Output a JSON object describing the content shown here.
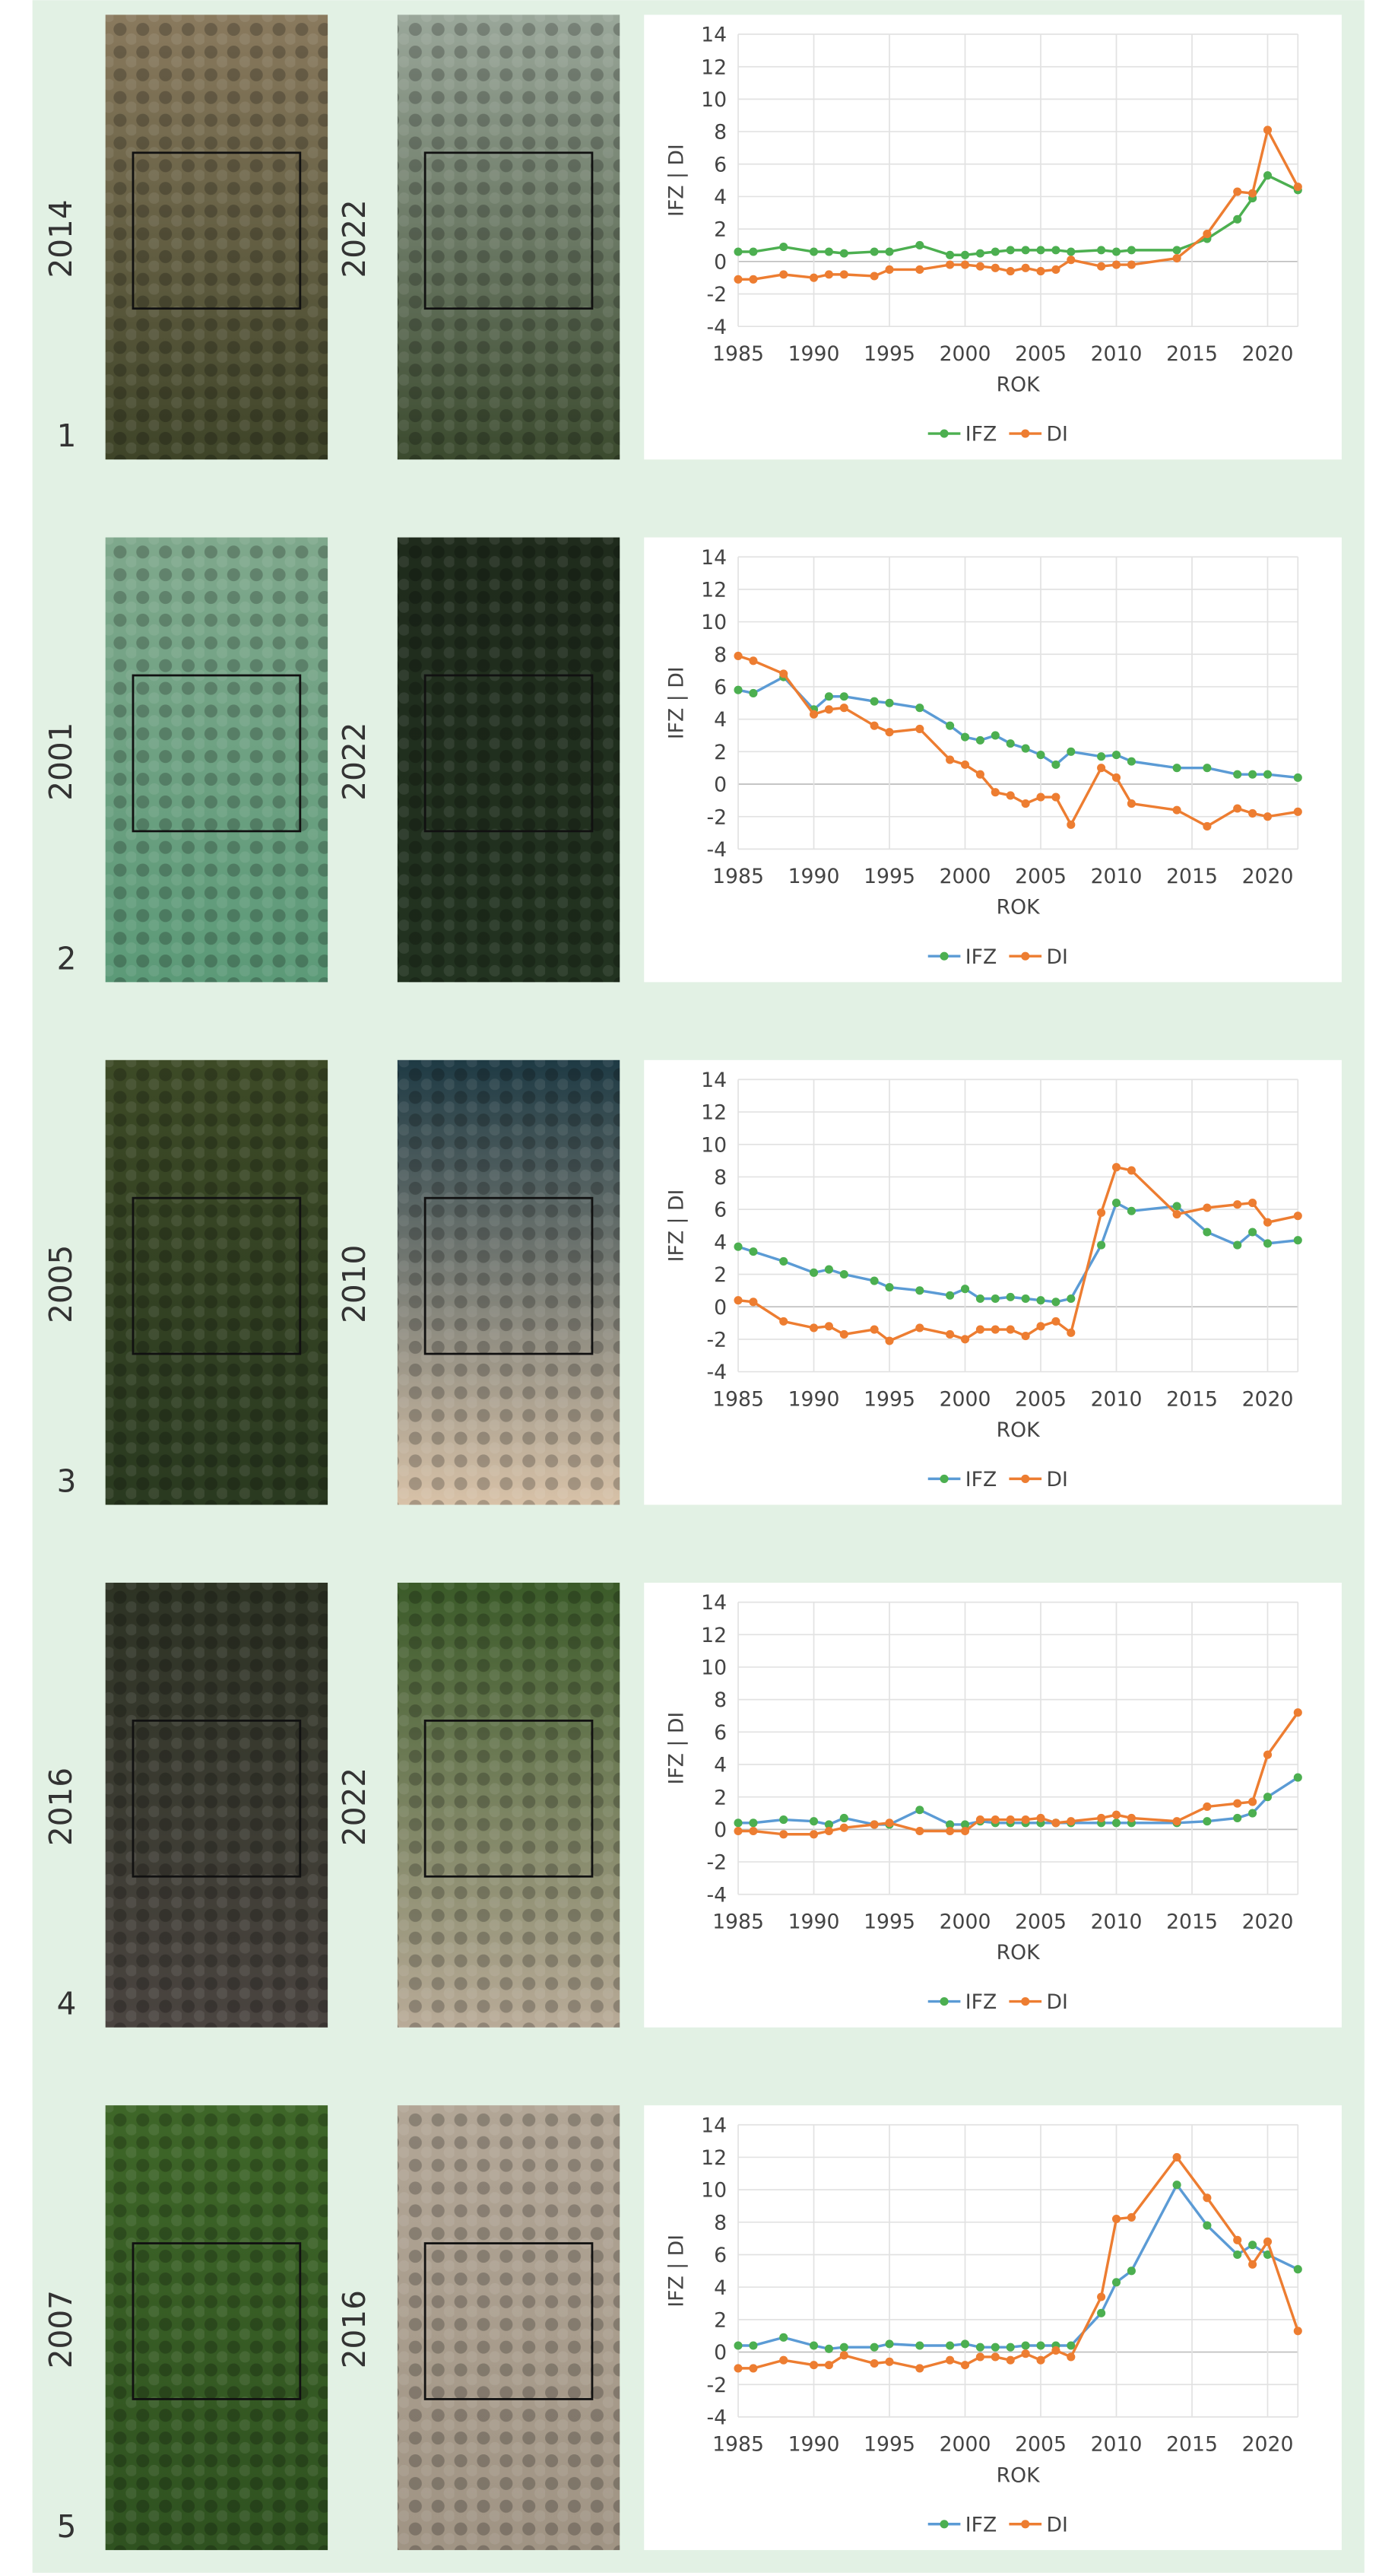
{
  "rows": [
    {
      "number": "1",
      "years": [
        "2014",
        "2022"
      ]
    },
    {
      "number": "2",
      "years": [
        "2001",
        "2022"
      ]
    },
    {
      "number": "3",
      "years": [
        "2005",
        "2010"
      ]
    },
    {
      "number": "4",
      "years": [
        "2016",
        "2022"
      ]
    },
    {
      "number": "5",
      "years": [
        "2007",
        "2016"
      ]
    }
  ],
  "chart_data": [
    {
      "type": "line",
      "ylabel": "IFZ | DI",
      "xlabel": "ROK",
      "xlim": [
        1985,
        2022
      ],
      "xticks": [
        1985,
        1990,
        1995,
        2000,
        2005,
        2010,
        2015,
        2020
      ],
      "ylim": [
        -4,
        14
      ],
      "yticks": [
        -4,
        -2,
        0,
        2,
        4,
        6,
        8,
        10,
        12,
        14
      ],
      "grid": true,
      "x": [
        1985,
        1986,
        1988,
        1990,
        1991,
        1992,
        1994,
        1995,
        1997,
        1999,
        2000,
        2001,
        2002,
        2003,
        2004,
        2005,
        2006,
        2007,
        2009,
        2010,
        2011,
        2014,
        2016,
        2018,
        2019,
        2020,
        2022
      ],
      "series": [
        {
          "name": "IFZ",
          "color": "#4caf50",
          "marker_color": "#4caf50",
          "values": [
            0.6,
            0.6,
            0.9,
            0.6,
            0.6,
            0.5,
            0.6,
            0.6,
            1.0,
            0.4,
            0.4,
            0.5,
            0.6,
            0.7,
            0.7,
            0.7,
            0.7,
            0.6,
            0.7,
            0.6,
            0.7,
            0.7,
            1.4,
            2.6,
            3.9,
            5.3,
            4.4
          ]
        },
        {
          "name": "DI",
          "color": "#ed7d31",
          "marker_color": "#ed7d31",
          "values": [
            -1.1,
            -1.1,
            -0.8,
            -1.0,
            -0.8,
            -0.8,
            -0.9,
            -0.5,
            -0.5,
            -0.2,
            -0.2,
            -0.3,
            -0.4,
            -0.6,
            -0.4,
            -0.6,
            -0.5,
            0.1,
            -0.3,
            -0.2,
            -0.2,
            0.2,
            1.7,
            4.3,
            4.2,
            8.1,
            4.6
          ]
        }
      ]
    },
    {
      "type": "line",
      "ylabel": "IFZ | DI",
      "xlabel": "ROK",
      "xlim": [
        1985,
        2022
      ],
      "xticks": [
        1985,
        1990,
        1995,
        2000,
        2005,
        2010,
        2015,
        2020
      ],
      "ylim": [
        -4,
        14
      ],
      "yticks": [
        -4,
        -2,
        0,
        2,
        4,
        6,
        8,
        10,
        12,
        14
      ],
      "grid": true,
      "x": [
        1985,
        1986,
        1988,
        1990,
        1991,
        1992,
        1994,
        1995,
        1997,
        1999,
        2000,
        2001,
        2002,
        2003,
        2004,
        2005,
        2006,
        2007,
        2009,
        2010,
        2011,
        2014,
        2016,
        2018,
        2019,
        2020,
        2022
      ],
      "series": [
        {
          "name": "IFZ",
          "color": "#5b9bd5",
          "marker_color": "#4caf50",
          "values": [
            5.8,
            5.6,
            6.6,
            4.6,
            5.4,
            5.4,
            5.1,
            5.0,
            4.7,
            3.6,
            2.9,
            2.7,
            3.0,
            2.5,
            2.2,
            1.8,
            1.2,
            2.0,
            1.7,
            1.8,
            1.4,
            1.0,
            1.0,
            0.6,
            0.6,
            0.6,
            0.4
          ]
        },
        {
          "name": "DI",
          "color": "#ed7d31",
          "marker_color": "#ed7d31",
          "values": [
            7.9,
            7.6,
            6.8,
            4.3,
            4.6,
            4.7,
            3.6,
            3.2,
            3.4,
            1.5,
            1.2,
            0.6,
            -0.5,
            -0.7,
            -1.2,
            -0.8,
            -0.8,
            -2.5,
            1.0,
            0.4,
            -1.2,
            -1.6,
            -2.6,
            -1.5,
            -1.8,
            -2.0,
            -1.7
          ]
        }
      ]
    },
    {
      "type": "line",
      "ylabel": "IFZ | DI",
      "xlabel": "ROK",
      "xlim": [
        1985,
        2022
      ],
      "xticks": [
        1985,
        1990,
        1995,
        2000,
        2005,
        2010,
        2015,
        2020
      ],
      "ylim": [
        -4,
        14
      ],
      "yticks": [
        -4,
        -2,
        0,
        2,
        4,
        6,
        8,
        10,
        12,
        14
      ],
      "grid": true,
      "x": [
        1985,
        1986,
        1988,
        1990,
        1991,
        1992,
        1994,
        1995,
        1997,
        1999,
        2000,
        2001,
        2002,
        2003,
        2004,
        2005,
        2006,
        2007,
        2009,
        2010,
        2011,
        2014,
        2016,
        2018,
        2019,
        2020,
        2022
      ],
      "series": [
        {
          "name": "IFZ",
          "color": "#5b9bd5",
          "marker_color": "#4caf50",
          "values": [
            3.7,
            3.4,
            2.8,
            2.1,
            2.3,
            2.0,
            1.6,
            1.2,
            1.0,
            0.7,
            1.1,
            0.5,
            0.5,
            0.6,
            0.5,
            0.4,
            0.3,
            0.5,
            3.8,
            6.4,
            5.9,
            6.2,
            4.6,
            3.8,
            4.6,
            3.9,
            4.1
          ]
        },
        {
          "name": "DI",
          "color": "#ed7d31",
          "marker_color": "#ed7d31",
          "values": [
            0.4,
            0.3,
            -0.9,
            -1.3,
            -1.2,
            -1.7,
            -1.4,
            -2.1,
            -1.3,
            -1.7,
            -2.0,
            -1.4,
            -1.4,
            -1.4,
            -1.8,
            -1.2,
            -0.9,
            -1.6,
            5.8,
            8.6,
            8.4,
            5.7,
            6.1,
            6.3,
            6.4,
            5.2,
            5.6
          ]
        }
      ]
    },
    {
      "type": "line",
      "ylabel": "IFZ | DI",
      "xlabel": "ROK",
      "xlim": [
        1985,
        2022
      ],
      "xticks": [
        1985,
        1990,
        1995,
        2000,
        2005,
        2010,
        2015,
        2020
      ],
      "ylim": [
        -4,
        14
      ],
      "yticks": [
        -4,
        -2,
        0,
        2,
        4,
        6,
        8,
        10,
        12,
        14
      ],
      "grid": true,
      "x": [
        1985,
        1986,
        1988,
        1990,
        1991,
        1992,
        1994,
        1995,
        1997,
        1999,
        2000,
        2001,
        2002,
        2003,
        2004,
        2005,
        2006,
        2007,
        2009,
        2010,
        2011,
        2014,
        2016,
        2018,
        2019,
        2020,
        2022
      ],
      "series": [
        {
          "name": "IFZ",
          "color": "#5b9bd5",
          "marker_color": "#4caf50",
          "values": [
            0.4,
            0.4,
            0.6,
            0.5,
            0.3,
            0.7,
            0.3,
            0.3,
            1.2,
            0.3,
            0.3,
            0.5,
            0.4,
            0.4,
            0.4,
            0.4,
            0.4,
            0.4,
            0.4,
            0.4,
            0.4,
            0.4,
            0.5,
            0.7,
            1.0,
            2.0,
            3.2
          ]
        },
        {
          "name": "DI",
          "color": "#ed7d31",
          "marker_color": "#ed7d31",
          "values": [
            -0.1,
            -0.1,
            -0.3,
            -0.3,
            -0.1,
            0.1,
            0.3,
            0.4,
            -0.1,
            -0.1,
            -0.1,
            0.6,
            0.6,
            0.6,
            0.6,
            0.7,
            0.4,
            0.5,
            0.7,
            0.9,
            0.7,
            0.5,
            1.4,
            1.6,
            1.7,
            4.6,
            7.2
          ]
        }
      ]
    },
    {
      "type": "line",
      "ylabel": "IFZ | DI",
      "xlabel": "ROK",
      "xlim": [
        1985,
        2022
      ],
      "xticks": [
        1985,
        1990,
        1995,
        2000,
        2005,
        2010,
        2015,
        2020
      ],
      "ylim": [
        -4,
        14
      ],
      "yticks": [
        -4,
        -2,
        0,
        2,
        4,
        6,
        8,
        10,
        12,
        14
      ],
      "grid": true,
      "x": [
        1985,
        1986,
        1988,
        1990,
        1991,
        1992,
        1994,
        1995,
        1997,
        1999,
        2000,
        2001,
        2002,
        2003,
        2004,
        2005,
        2006,
        2007,
        2009,
        2010,
        2011,
        2014,
        2016,
        2018,
        2019,
        2020,
        2022
      ],
      "series": [
        {
          "name": "IFZ",
          "color": "#5b9bd5",
          "marker_color": "#4caf50",
          "values": [
            0.4,
            0.4,
            0.9,
            0.4,
            0.2,
            0.3,
            0.3,
            0.5,
            0.4,
            0.4,
            0.5,
            0.3,
            0.3,
            0.3,
            0.4,
            0.4,
            0.4,
            0.4,
            2.4,
            4.3,
            5.0,
            10.3,
            7.8,
            6.0,
            6.6,
            6.0,
            5.1
          ]
        },
        {
          "name": "DI",
          "color": "#ed7d31",
          "marker_color": "#ed7d31",
          "values": [
            -1.0,
            -1.0,
            -0.5,
            -0.8,
            -0.8,
            -0.2,
            -0.7,
            -0.6,
            -1.0,
            -0.5,
            -0.8,
            -0.3,
            -0.3,
            -0.5,
            -0.1,
            -0.5,
            0.1,
            -0.3,
            3.4,
            8.2,
            8.3,
            12.0,
            9.5,
            6.9,
            5.4,
            6.8,
            1.3
          ]
        }
      ]
    }
  ]
}
